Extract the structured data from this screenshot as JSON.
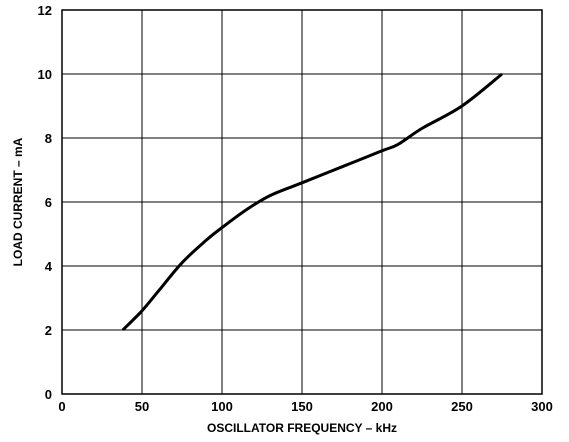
{
  "chart_data": {
    "type": "line",
    "title": "",
    "xlabel": "OSCILLATOR FREQUENCY – kHz",
    "ylabel": "LOAD CURRENT – mA",
    "xlim": [
      0,
      300
    ],
    "ylim": [
      0,
      12
    ],
    "xticks": [
      0,
      50,
      100,
      150,
      200,
      250,
      300
    ],
    "yticks": [
      0,
      2,
      4,
      6,
      8,
      10,
      12
    ],
    "grid": true,
    "legend": "none",
    "colors": {
      "line": "#000000",
      "grid": "#000000",
      "background": "#ffffff"
    },
    "series": [
      {
        "x": [
          38,
          50,
          60,
          75,
          90,
          100,
          115,
          130,
          150,
          175,
          200,
          210,
          225,
          250,
          275
        ],
        "y": [
          2.0,
          2.6,
          3.2,
          4.1,
          4.8,
          5.2,
          5.75,
          6.2,
          6.6,
          7.1,
          7.6,
          7.8,
          8.3,
          9.0,
          10.0
        ]
      }
    ]
  }
}
